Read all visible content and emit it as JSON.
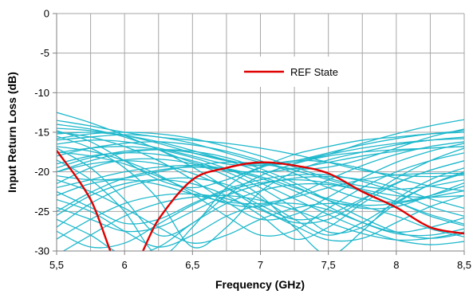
{
  "chart_data": {
    "type": "line",
    "title": "",
    "xlabel": "Frequency (GHz)",
    "ylabel": "Input Return Loss (dB)",
    "xlim": [
      5.5,
      8.5
    ],
    "ylim": [
      -30,
      0
    ],
    "x_ticks": [
      5.5,
      6,
      6.5,
      7,
      7.5,
      8,
      8.5
    ],
    "x_tick_labels": [
      "5,5",
      "6",
      "6,5",
      "7",
      "7,5",
      "8",
      "8,5"
    ],
    "y_ticks": [
      0,
      -5,
      -10,
      -15,
      -20,
      -25,
      -30
    ],
    "y_tick_labels": [
      "0",
      "-5",
      "-10",
      "-15",
      "-20",
      "-25",
      "-30"
    ],
    "grid": true,
    "legend": {
      "position": "top-right",
      "entries": [
        "REF State"
      ]
    },
    "colors": {
      "ref": "#e00000",
      "states": "#1fb8cc"
    },
    "x": [
      5.5,
      5.75,
      6.0,
      6.25,
      6.5,
      6.75,
      7.0,
      7.25,
      7.5,
      7.75,
      8.0,
      8.25,
      8.5
    ],
    "series": [
      {
        "name": "REF State",
        "values": [
          -17.3,
          -23.5,
          -33.0,
          -26.0,
          -21.0,
          -19.5,
          -18.8,
          -19.2,
          -20.2,
          -22.5,
          -24.5,
          -27.0,
          -27.8
        ]
      }
    ],
    "state_series": [
      {
        "values": [
          -15.2,
          -15.0,
          -15.4,
          -16.2,
          -17.3,
          -18.5,
          -19.2,
          -18.8,
          -17.8,
          -16.4,
          -15.2,
          -14.2,
          -13.4
        ]
      },
      {
        "values": [
          -16.0,
          -15.6,
          -15.3,
          -15.6,
          -16.4,
          -17.6,
          -18.8,
          -19.6,
          -19.4,
          -18.4,
          -17.0,
          -15.6,
          -14.6
        ]
      },
      {
        "values": [
          -14.8,
          -16.2,
          -18.6,
          -21.0,
          -22.0,
          -21.0,
          -19.4,
          -17.8,
          -16.8,
          -16.0,
          -15.6,
          -15.2,
          -15.0
        ]
      },
      {
        "values": [
          -17.0,
          -19.5,
          -23.5,
          -28.0,
          -26.5,
          -23.0,
          -20.5,
          -19.0,
          -18.0,
          -17.5,
          -17.2,
          -17.0,
          -16.8
        ]
      },
      {
        "values": [
          -15.5,
          -17.0,
          -19.5,
          -23.5,
          -29.5,
          -27.0,
          -22.5,
          -20.0,
          -18.5,
          -17.5,
          -16.6,
          -16.0,
          -15.6
        ]
      },
      {
        "values": [
          -18.5,
          -21.0,
          -25.0,
          -30.5,
          -27.0,
          -22.0,
          -19.5,
          -18.6,
          -18.8,
          -19.6,
          -20.8,
          -21.8,
          -22.4
        ]
      },
      {
        "values": [
          -20.0,
          -19.0,
          -18.6,
          -19.0,
          -20.2,
          -22.0,
          -24.2,
          -26.0,
          -25.4,
          -23.4,
          -21.4,
          -19.8,
          -18.6
        ]
      },
      {
        "values": [
          -19.0,
          -18.0,
          -17.6,
          -17.8,
          -18.6,
          -20.0,
          -22.0,
          -24.6,
          -27.6,
          -27.0,
          -24.0,
          -21.6,
          -20.0
        ]
      },
      {
        "values": [
          -21.5,
          -19.5,
          -18.5,
          -18.4,
          -19.0,
          -20.5,
          -23.0,
          -27.0,
          -30.5,
          -27.5,
          -23.5,
          -21.0,
          -19.5
        ]
      },
      {
        "values": [
          -23.0,
          -21.5,
          -21.0,
          -21.6,
          -22.8,
          -23.8,
          -24.0,
          -23.2,
          -22.0,
          -21.0,
          -20.4,
          -20.2,
          -20.2
        ]
      },
      {
        "values": [
          -25.5,
          -23.0,
          -21.5,
          -21.0,
          -21.5,
          -23.0,
          -25.5,
          -28.5,
          -27.0,
          -24.0,
          -21.5,
          -19.8,
          -18.6
        ]
      },
      {
        "values": [
          -22.5,
          -24.5,
          -26.5,
          -26.0,
          -24.0,
          -22.2,
          -21.0,
          -20.4,
          -20.4,
          -21.2,
          -22.6,
          -24.4,
          -25.6
        ]
      },
      {
        "values": [
          -27.0,
          -24.0,
          -22.0,
          -21.0,
          -20.8,
          -21.6,
          -23.4,
          -26.0,
          -28.0,
          -26.4,
          -23.8,
          -21.6,
          -20.2
        ]
      },
      {
        "values": [
          -17.5,
          -18.0,
          -19.0,
          -20.6,
          -22.4,
          -24.0,
          -24.4,
          -23.0,
          -21.0,
          -19.2,
          -17.8,
          -16.8,
          -16.2
        ]
      },
      {
        "values": [
          -16.5,
          -16.0,
          -16.2,
          -17.0,
          -18.0,
          -19.0,
          -19.2,
          -18.6,
          -17.6,
          -16.6,
          -15.8,
          -15.2,
          -14.8
        ]
      },
      {
        "values": [
          -14.5,
          -14.8,
          -15.4,
          -16.4,
          -17.6,
          -18.6,
          -19.0,
          -18.6,
          -17.8,
          -17.0,
          -16.4,
          -16.0,
          -15.8
        ]
      },
      {
        "values": [
          -12.5,
          -13.8,
          -15.4,
          -17.2,
          -18.8,
          -19.8,
          -20.0,
          -19.6,
          -18.8,
          -18.0,
          -17.4,
          -17.0,
          -16.8
        ]
      },
      {
        "values": [
          -13.5,
          -14.2,
          -15.0,
          -15.6,
          -16.0,
          -16.4,
          -17.0,
          -17.8,
          -18.8,
          -19.8,
          -20.4,
          -20.6,
          -20.4
        ]
      },
      {
        "values": [
          -15.8,
          -15.2,
          -15.0,
          -15.2,
          -15.8,
          -16.8,
          -18.0,
          -19.4,
          -20.8,
          -21.8,
          -22.2,
          -21.8,
          -21.0
        ]
      },
      {
        "values": [
          -18.0,
          -17.0,
          -16.4,
          -16.2,
          -16.6,
          -17.4,
          -18.6,
          -20.2,
          -22.0,
          -23.4,
          -23.8,
          -23.0,
          -21.8
        ]
      },
      {
        "values": [
          -19.5,
          -18.2,
          -17.4,
          -17.2,
          -17.6,
          -18.6,
          -20.0,
          -21.8,
          -23.6,
          -24.6,
          -24.4,
          -23.0,
          -21.4
        ]
      },
      {
        "values": [
          -20.5,
          -21.0,
          -20.8,
          -20.0,
          -19.2,
          -18.8,
          -19.0,
          -19.8,
          -21.0,
          -22.2,
          -23.0,
          -23.2,
          -23.0
        ]
      },
      {
        "values": [
          -22.0,
          -21.0,
          -20.0,
          -19.4,
          -19.2,
          -19.6,
          -20.6,
          -22.0,
          -23.4,
          -24.2,
          -24.0,
          -23.2,
          -22.4
        ]
      },
      {
        "values": [
          -24.5,
          -26.0,
          -27.5,
          -27.0,
          -25.0,
          -23.0,
          -21.6,
          -20.8,
          -20.6,
          -21.0,
          -22.0,
          -23.4,
          -24.6
        ]
      },
      {
        "values": [
          -26.0,
          -28.0,
          -30.5,
          -29.5,
          -26.5,
          -24.0,
          -22.4,
          -21.6,
          -21.6,
          -22.4,
          -23.8,
          -25.6,
          -26.8
        ]
      },
      {
        "values": [
          -28.5,
          -26.0,
          -24.0,
          -23.0,
          -22.8,
          -23.4,
          -24.8,
          -26.8,
          -28.6,
          -28.4,
          -26.4,
          -24.4,
          -23.0
        ]
      },
      {
        "values": [
          -23.5,
          -25.0,
          -27.5,
          -29.5,
          -28.0,
          -25.6,
          -24.2,
          -24.0,
          -24.8,
          -26.4,
          -27.6,
          -27.0,
          -25.8
        ]
      },
      {
        "values": [
          -21.0,
          -22.5,
          -24.6,
          -27.0,
          -29.0,
          -28.0,
          -26.0,
          -24.6,
          -24.0,
          -24.4,
          -25.6,
          -27.2,
          -28.2
        ]
      },
      {
        "values": [
          -16.8,
          -17.4,
          -18.6,
          -20.4,
          -22.8,
          -25.6,
          -28.0,
          -27.4,
          -24.6,
          -22.0,
          -20.0,
          -18.6,
          -17.6
        ]
      },
      {
        "values": [
          -15.0,
          -15.6,
          -16.8,
          -18.6,
          -21.0,
          -23.8,
          -26.0,
          -25.4,
          -23.2,
          -20.8,
          -18.8,
          -17.4,
          -16.4
        ]
      },
      {
        "values": [
          -14.0,
          -14.6,
          -15.6,
          -17.2,
          -19.4,
          -22.0,
          -24.6,
          -26.4,
          -26.0,
          -23.6,
          -20.8,
          -18.6,
          -17.0
        ]
      },
      {
        "values": [
          -20.0,
          -18.6,
          -17.6,
          -17.2,
          -17.4,
          -18.2,
          -19.6,
          -21.4,
          -23.6,
          -25.8,
          -27.6,
          -28.4,
          -27.8
        ]
      },
      {
        "values": [
          -17.6,
          -17.0,
          -16.8,
          -17.2,
          -18.2,
          -19.6,
          -21.4,
          -23.4,
          -25.4,
          -27.2,
          -28.6,
          -29.2,
          -28.8
        ]
      },
      {
        "values": [
          -25.0,
          -22.6,
          -20.8,
          -19.8,
          -19.4,
          -19.8,
          -20.8,
          -22.4,
          -24.4,
          -26.4,
          -27.8,
          -28.0,
          -27.2
        ]
      },
      {
        "values": [
          -27.5,
          -29.5,
          -29.0,
          -26.6,
          -24.2,
          -22.4,
          -21.4,
          -21.0,
          -21.4,
          -22.4,
          -23.8,
          -25.4,
          -26.6
        ]
      },
      {
        "values": [
          -30.5,
          -28.0,
          -25.6,
          -24.0,
          -23.2,
          -23.0,
          -23.6,
          -24.8,
          -26.4,
          -27.8,
          -28.6,
          -28.4,
          -27.6
        ]
      }
    ]
  }
}
